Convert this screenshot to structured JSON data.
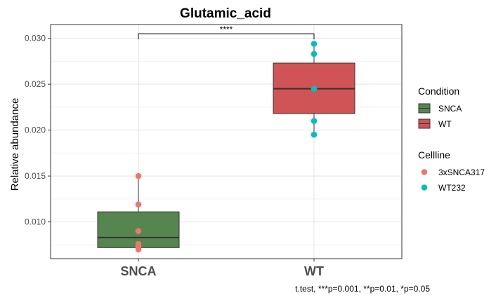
{
  "chart_data": {
    "type": "box",
    "title": "Glutamic_acid",
    "ylabel": "Relative abundance",
    "xlabel": "",
    "categories": [
      "SNCA",
      "WT"
    ],
    "ylim": [
      0.006,
      0.0315
    ],
    "yticks": [
      0.01,
      0.015,
      0.02,
      0.025,
      0.03
    ],
    "ytick_labels": [
      "0.010",
      "0.015",
      "0.020",
      "0.025",
      "0.030"
    ],
    "grid": true,
    "boxes": [
      {
        "category": "SNCA",
        "condition": "SNCA",
        "fill": "#55864f",
        "whisker_low": 0.007,
        "q1": 0.0072,
        "median": 0.0083,
        "q3": 0.0111,
        "whisker_high": 0.015
      },
      {
        "category": "WT",
        "condition": "WT",
        "fill": "#d05355",
        "whisker_low": 0.0195,
        "q1": 0.0218,
        "median": 0.0245,
        "q3": 0.0273,
        "whisker_high": 0.0294
      }
    ],
    "points": [
      {
        "category": "SNCA",
        "cellline": "3xSNCA317",
        "y": 0.015
      },
      {
        "category": "SNCA",
        "cellline": "3xSNCA317",
        "y": 0.0119
      },
      {
        "category": "SNCA",
        "cellline": "3xSNCA317",
        "y": 0.009
      },
      {
        "category": "SNCA",
        "cellline": "3xSNCA317",
        "y": 0.0076
      },
      {
        "category": "SNCA",
        "cellline": "3xSNCA317",
        "y": 0.0073
      },
      {
        "category": "SNCA",
        "cellline": "3xSNCA317",
        "y": 0.007
      },
      {
        "category": "WT",
        "cellline": "WT232",
        "y": 0.0294
      },
      {
        "category": "WT",
        "cellline": "WT232",
        "y": 0.0283
      },
      {
        "category": "WT",
        "cellline": "WT232",
        "y": 0.0245
      },
      {
        "category": "WT",
        "cellline": "WT232",
        "y": 0.021
      },
      {
        "category": "WT",
        "cellline": "WT232",
        "y": 0.0195
      }
    ],
    "significance": {
      "from": "SNCA",
      "to": "WT",
      "label": "****",
      "y": 0.0305
    },
    "legends": [
      {
        "title": "Condition",
        "type": "fill",
        "items": [
          {
            "label": "SNCA",
            "color": "#55864f"
          },
          {
            "label": "WT",
            "color": "#d05355"
          }
        ]
      },
      {
        "title": "Cellline",
        "type": "point",
        "items": [
          {
            "label": "3xSNCA317",
            "color": "#f0766d"
          },
          {
            "label": "WT232",
            "color": "#00bfc4"
          }
        ]
      }
    ],
    "legend_position": "right",
    "footnote": "t.test, ***p=0.001, **p=0.01, *p=0.05"
  }
}
